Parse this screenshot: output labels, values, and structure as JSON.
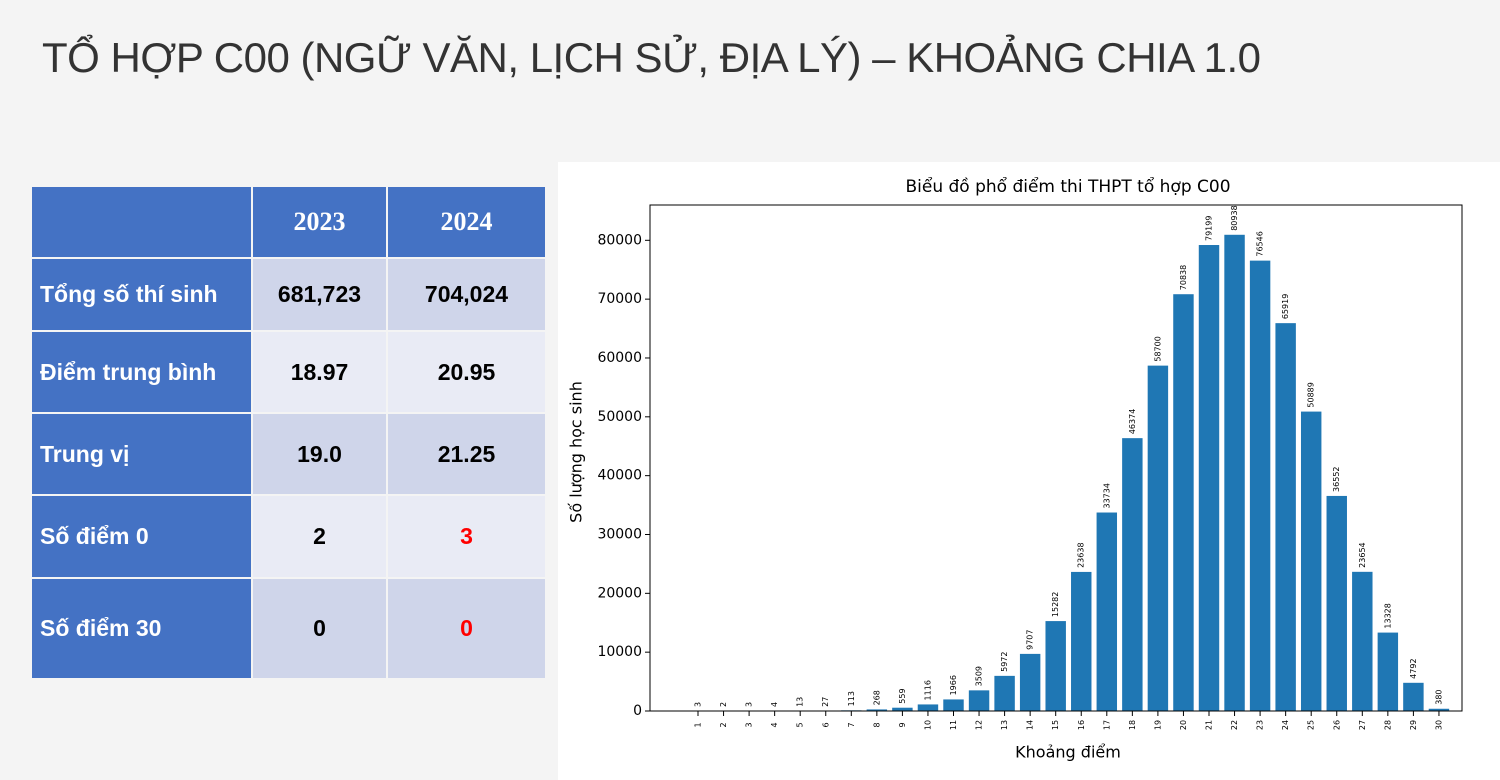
{
  "title": "TỔ HỢP C00 (NGỮ VĂN, LỊCH SỬ, ĐỊA LÝ) – KHOẢNG CHIA 1.0",
  "table": {
    "header": [
      "2023",
      "2024"
    ],
    "rows": [
      [
        "Tổng số thí sinh",
        "681,723",
        "704,024"
      ],
      [
        "Điểm trung bình",
        "18.97",
        "20.95"
      ],
      [
        "Trung vị",
        "19.0",
        "21.25"
      ],
      [
        "Số điểm 0",
        "2",
        "3"
      ],
      [
        "Số điểm 30",
        "0",
        "0"
      ]
    ]
  },
  "chart_data": {
    "type": "bar",
    "title": "Biểu đồ phổ điểm thi THPT tổ hợp C00",
    "x_label": "Khoảng điểm",
    "y_label": "Số lượng học sinh",
    "categories": [
      "1",
      "2",
      "3",
      "4",
      "5",
      "6",
      "7",
      "8",
      "9",
      "10",
      "11",
      "12",
      "13",
      "14",
      "15",
      "16",
      "17",
      "18",
      "19",
      "20",
      "21",
      "22",
      "23",
      "24",
      "25",
      "26",
      "27",
      "28",
      "29",
      "30"
    ],
    "values": [
      3,
      2,
      3,
      4,
      13,
      27,
      113,
      268,
      559,
      1116,
      1966,
      3509,
      5972,
      9707,
      15282,
      23638,
      33734,
      46374,
      58700,
      70838,
      79199,
      80938,
      76546,
      65919,
      50889,
      36552,
      23654,
      13328,
      4792,
      380
    ],
    "color": "#1f77b4",
    "ylim": [
      0,
      86000
    ],
    "yticks": [
      0,
      10000,
      20000,
      30000,
      40000,
      50000,
      60000,
      70000,
      80000
    ]
  }
}
